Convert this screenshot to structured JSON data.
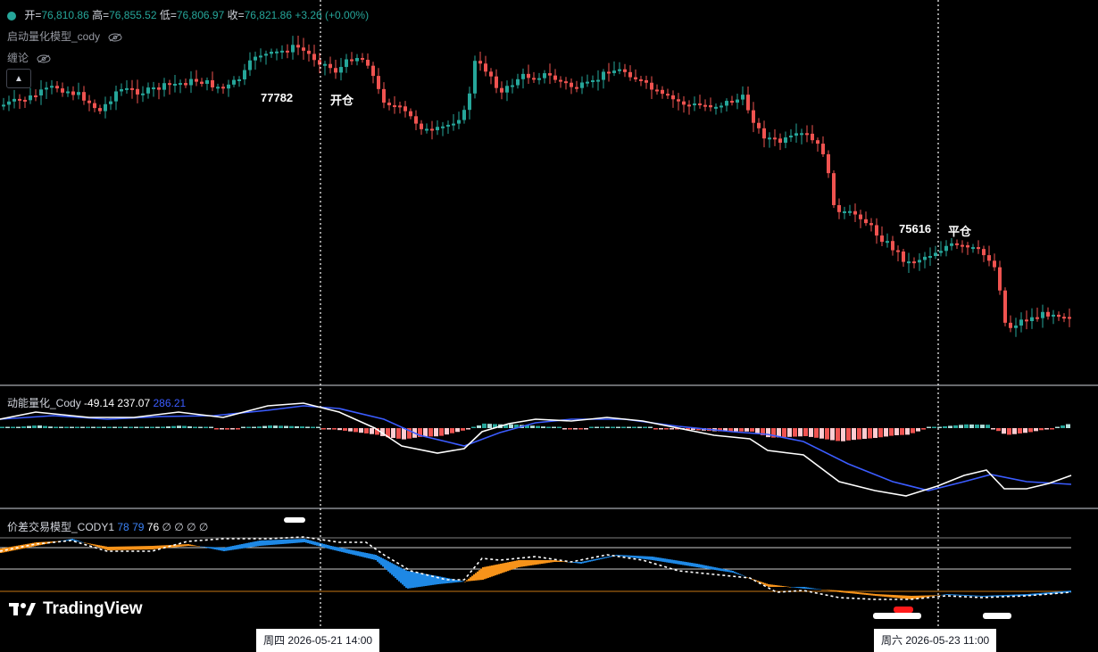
{
  "header": {
    "ohlc": {
      "open_label": "开=",
      "open": "76,810.86",
      "high_label": "高=",
      "high": "76,855.52",
      "low_label": "低=",
      "low": "76,806.97",
      "close_label": "收=",
      "close": "76,821.86",
      "change": "+3.26 (+0.00%)"
    },
    "indicators": [
      "启动量化模型_cody",
      "缠论"
    ],
    "collapse_icon": "chevron-up-icon"
  },
  "annotations": {
    "open_price": "77782",
    "open_text": "开仓",
    "close_price": "75616",
    "close_text": "平仓"
  },
  "pane_momentum": {
    "title": "动能量化_Cody",
    "v1": "-49.14",
    "v2": "237.07",
    "v3": "286.21"
  },
  "pane_spread": {
    "title": "价差交易模型_CODY1",
    "v1": "78",
    "v2": "79",
    "v3": "76",
    "na": "∅"
  },
  "brand": {
    "logo_text": "TradingView"
  },
  "time_labels": {
    "left": "周四 2026-05-21   14:00",
    "right": "周六 2026-05-23   11:00"
  },
  "colors": {
    "up": "#26a69a",
    "down": "#ef5350",
    "blue": "#2962ff",
    "orange": "#f7931a",
    "hist_up": "#26a69a",
    "hist_up_light": "#b2dfdb",
    "hist_down": "#ef5350",
    "hist_down_light": "#ffcdd2"
  }
}
